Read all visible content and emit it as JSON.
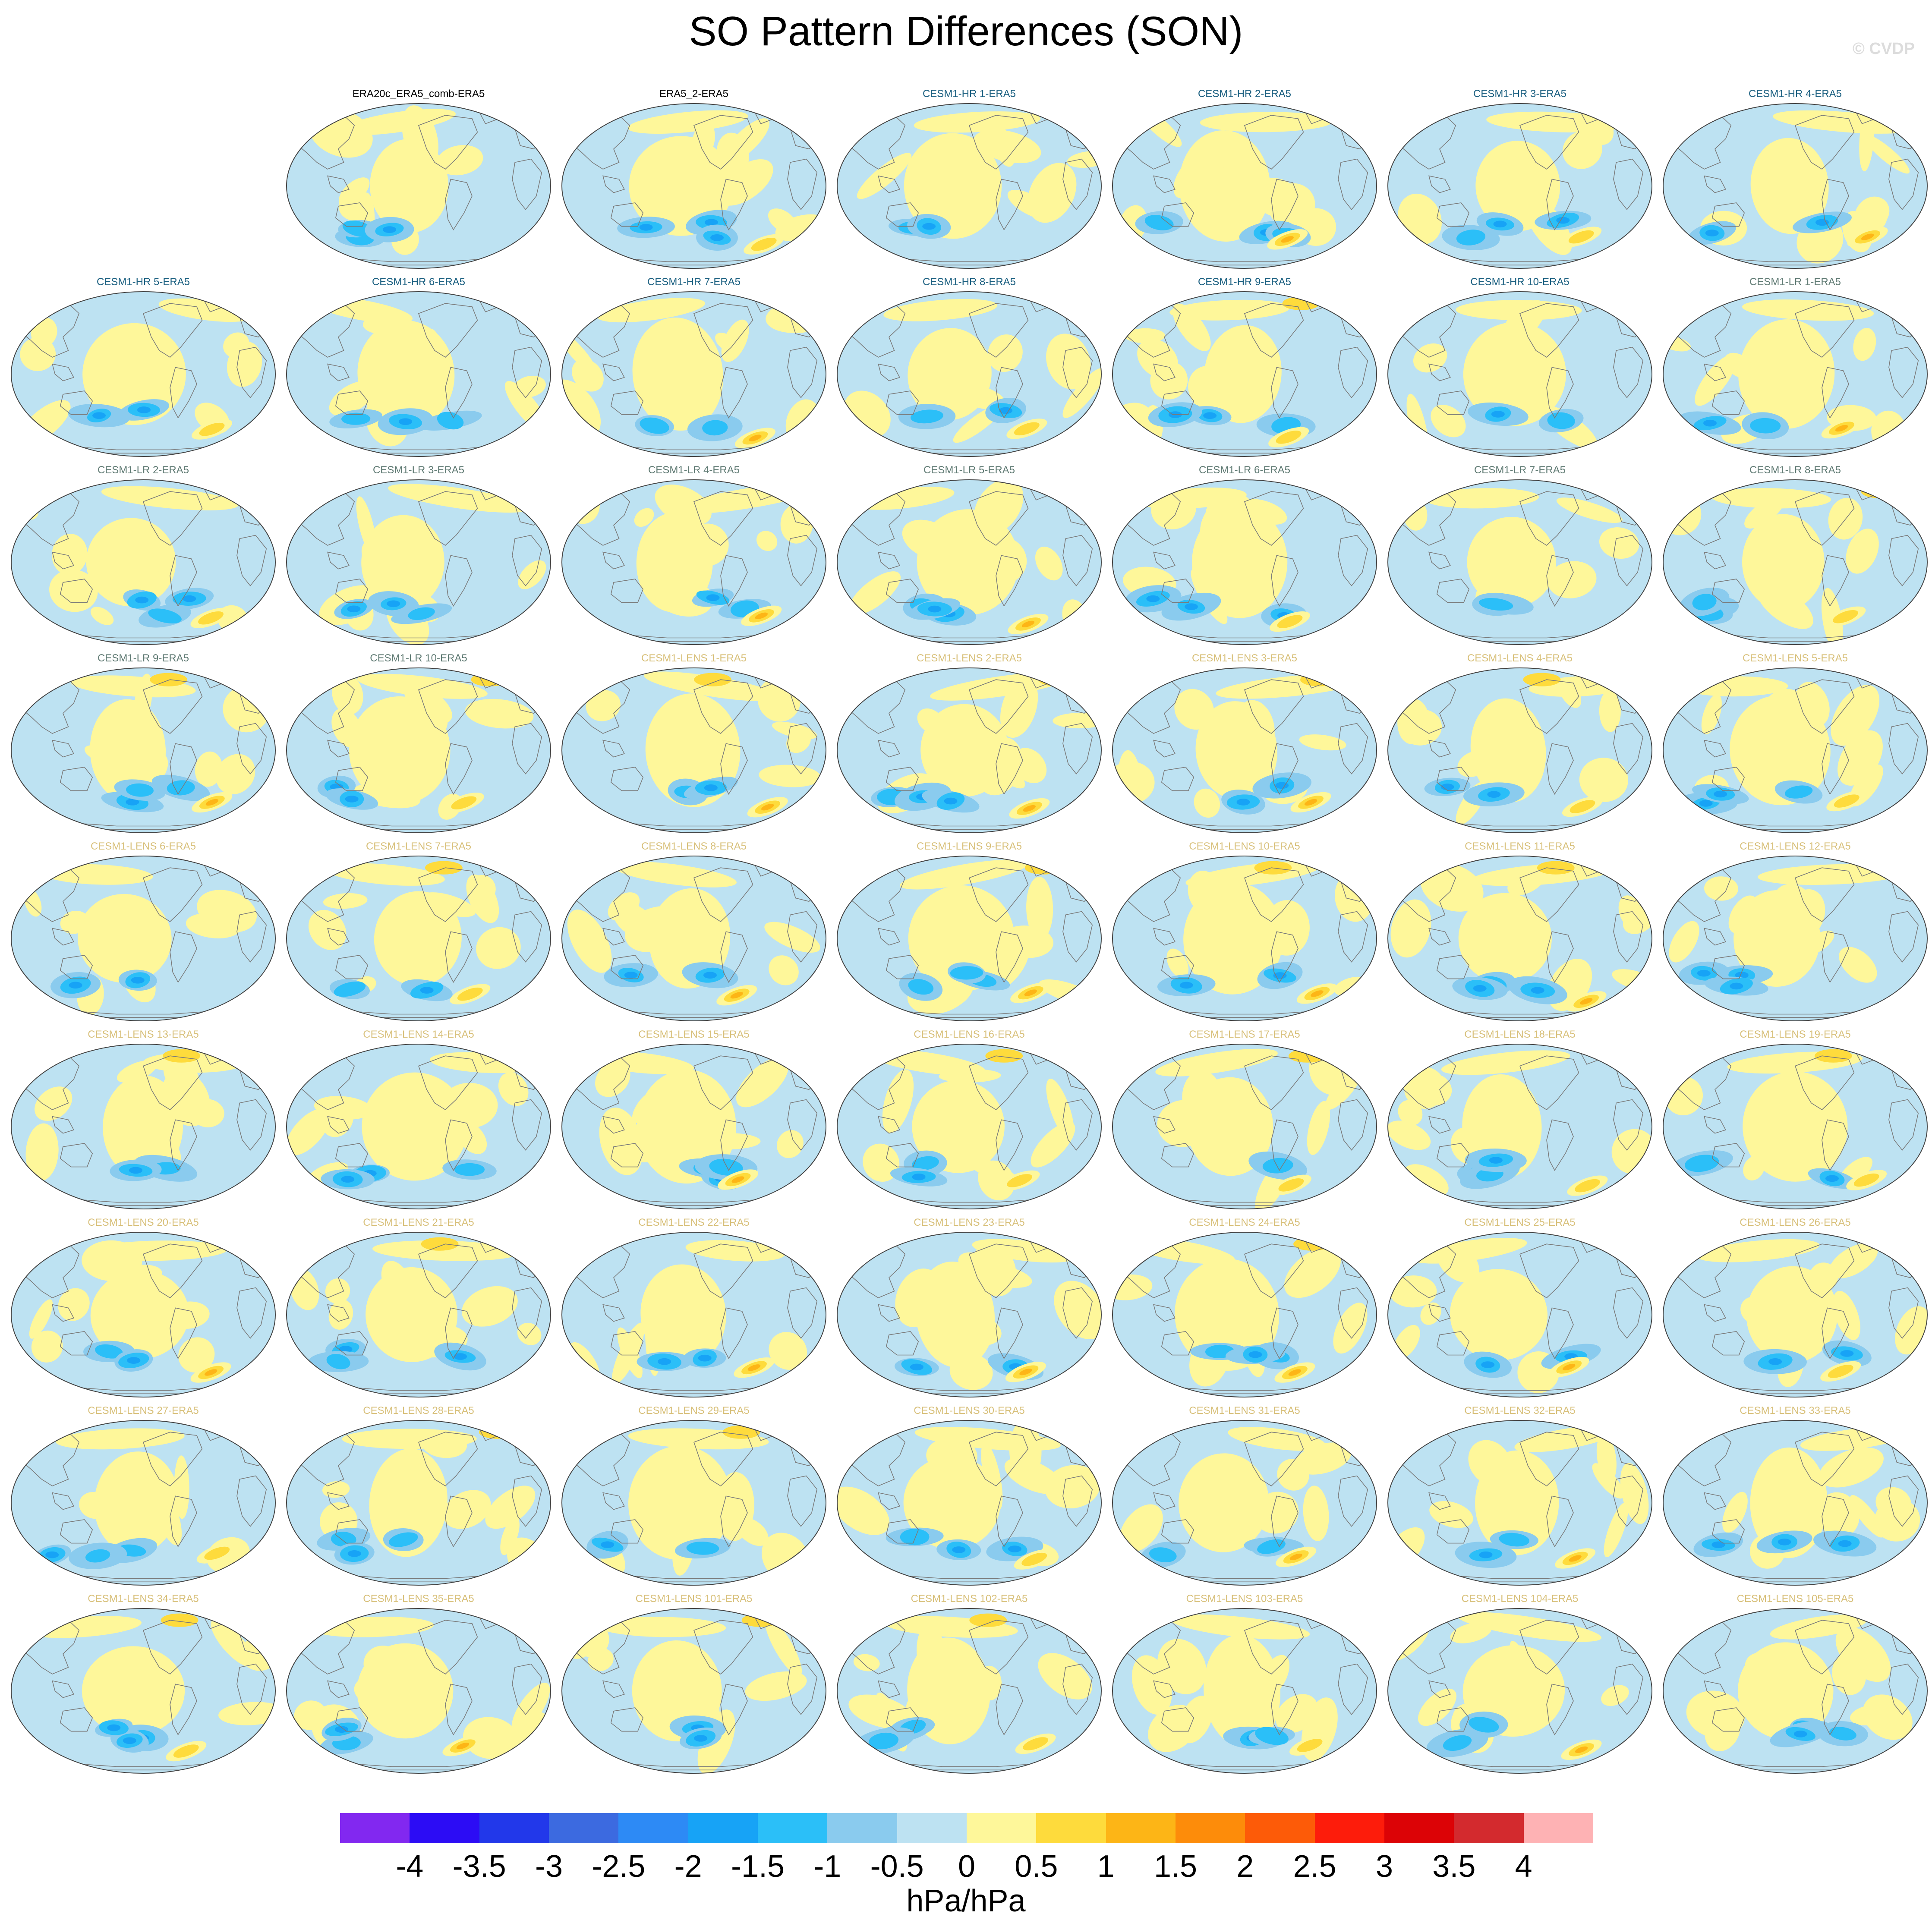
{
  "title": "SO Pattern Differences (SON)",
  "watermark": "© CVDP",
  "units": "hPa/hPa",
  "colorbar": {
    "ticks": [
      "-4",
      "-3.5",
      "-3",
      "-2.5",
      "-2",
      "-1.5",
      "-1",
      "-0.5",
      "0",
      "0.5",
      "1",
      "1.5",
      "2",
      "2.5",
      "3",
      "3.5",
      "4"
    ],
    "colors": [
      "#8228f0",
      "#2c0cf5",
      "#2238ea",
      "#3c6ae0",
      "#2d8af5",
      "#17a3f6",
      "#2bbff8",
      "#8acbee",
      "#bde2f2",
      "#fef79a",
      "#fedb3c",
      "#fdb516",
      "#fd8c0a",
      "#fd5b08",
      "#fd1c0b",
      "#dc0306",
      "#d32a2e",
      "#feb2b4"
    ]
  },
  "label_colors": {
    "obs": "#000000",
    "CESM1-HR": "#1a5f80",
    "CESM1-LR": "#5f7a73",
    "CESM1-LENS": "#d8c07a"
  },
  "panels": [
    {
      "label": "ERA20c_ERA5_comb-ERA5",
      "group": "obs"
    },
    {
      "label": "ERA5_2-ERA5",
      "group": "obs"
    },
    {
      "label": "CESM1-HR 1-ERA5",
      "group": "CESM1-HR"
    },
    {
      "label": "CESM1-HR 2-ERA5",
      "group": "CESM1-HR"
    },
    {
      "label": "CESM1-HR 3-ERA5",
      "group": "CESM1-HR"
    },
    {
      "label": "CESM1-HR 4-ERA5",
      "group": "CESM1-HR"
    },
    {
      "label": "CESM1-HR 5-ERA5",
      "group": "CESM1-HR"
    },
    {
      "label": "CESM1-HR 6-ERA5",
      "group": "CESM1-HR"
    },
    {
      "label": "CESM1-HR 7-ERA5",
      "group": "CESM1-HR"
    },
    {
      "label": "CESM1-HR 8-ERA5",
      "group": "CESM1-HR"
    },
    {
      "label": "CESM1-HR 9-ERA5",
      "group": "CESM1-HR"
    },
    {
      "label": "CESM1-HR 10-ERA5",
      "group": "CESM1-HR"
    },
    {
      "label": "CESM1-LR 1-ERA5",
      "group": "CESM1-LR"
    },
    {
      "label": "CESM1-LR 2-ERA5",
      "group": "CESM1-LR"
    },
    {
      "label": "CESM1-LR 3-ERA5",
      "group": "CESM1-LR"
    },
    {
      "label": "CESM1-LR 4-ERA5",
      "group": "CESM1-LR"
    },
    {
      "label": "CESM1-LR 5-ERA5",
      "group": "CESM1-LR"
    },
    {
      "label": "CESM1-LR 6-ERA5",
      "group": "CESM1-LR"
    },
    {
      "label": "CESM1-LR 7-ERA5",
      "group": "CESM1-LR"
    },
    {
      "label": "CESM1-LR 8-ERA5",
      "group": "CESM1-LR"
    },
    {
      "label": "CESM1-LR 9-ERA5",
      "group": "CESM1-LR"
    },
    {
      "label": "CESM1-LR 10-ERA5",
      "group": "CESM1-LR"
    },
    {
      "label": "CESM1-LENS 1-ERA5",
      "group": "CESM1-LENS"
    },
    {
      "label": "CESM1-LENS 2-ERA5",
      "group": "CESM1-LENS"
    },
    {
      "label": "CESM1-LENS 3-ERA5",
      "group": "CESM1-LENS"
    },
    {
      "label": "CESM1-LENS 4-ERA5",
      "group": "CESM1-LENS"
    },
    {
      "label": "CESM1-LENS 5-ERA5",
      "group": "CESM1-LENS"
    },
    {
      "label": "CESM1-LENS 6-ERA5",
      "group": "CESM1-LENS"
    },
    {
      "label": "CESM1-LENS 7-ERA5",
      "group": "CESM1-LENS"
    },
    {
      "label": "CESM1-LENS 8-ERA5",
      "group": "CESM1-LENS"
    },
    {
      "label": "CESM1-LENS 9-ERA5",
      "group": "CESM1-LENS"
    },
    {
      "label": "CESM1-LENS 10-ERA5",
      "group": "CESM1-LENS"
    },
    {
      "label": "CESM1-LENS 11-ERA5",
      "group": "CESM1-LENS"
    },
    {
      "label": "CESM1-LENS 12-ERA5",
      "group": "CESM1-LENS"
    },
    {
      "label": "CESM1-LENS 13-ERA5",
      "group": "CESM1-LENS"
    },
    {
      "label": "CESM1-LENS 14-ERA5",
      "group": "CESM1-LENS"
    },
    {
      "label": "CESM1-LENS 15-ERA5",
      "group": "CESM1-LENS"
    },
    {
      "label": "CESM1-LENS 16-ERA5",
      "group": "CESM1-LENS"
    },
    {
      "label": "CESM1-LENS 17-ERA5",
      "group": "CESM1-LENS"
    },
    {
      "label": "CESM1-LENS 18-ERA5",
      "group": "CESM1-LENS"
    },
    {
      "label": "CESM1-LENS 19-ERA5",
      "group": "CESM1-LENS"
    },
    {
      "label": "CESM1-LENS 20-ERA5",
      "group": "CESM1-LENS"
    },
    {
      "label": "CESM1-LENS 21-ERA5",
      "group": "CESM1-LENS"
    },
    {
      "label": "CESM1-LENS 22-ERA5",
      "group": "CESM1-LENS"
    },
    {
      "label": "CESM1-LENS 23-ERA5",
      "group": "CESM1-LENS"
    },
    {
      "label": "CESM1-LENS 24-ERA5",
      "group": "CESM1-LENS"
    },
    {
      "label": "CESM1-LENS 25-ERA5",
      "group": "CESM1-LENS"
    },
    {
      "label": "CESM1-LENS 26-ERA5",
      "group": "CESM1-LENS"
    },
    {
      "label": "CESM1-LENS 27-ERA5",
      "group": "CESM1-LENS"
    },
    {
      "label": "CESM1-LENS 28-ERA5",
      "group": "CESM1-LENS"
    },
    {
      "label": "CESM1-LENS 29-ERA5",
      "group": "CESM1-LENS"
    },
    {
      "label": "CESM1-LENS 30-ERA5",
      "group": "CESM1-LENS"
    },
    {
      "label": "CESM1-LENS 31-ERA5",
      "group": "CESM1-LENS"
    },
    {
      "label": "CESM1-LENS 32-ERA5",
      "group": "CESM1-LENS"
    },
    {
      "label": "CESM1-LENS 33-ERA5",
      "group": "CESM1-LENS"
    },
    {
      "label": "CESM1-LENS 34-ERA5",
      "group": "CESM1-LENS"
    },
    {
      "label": "CESM1-LENS 35-ERA5",
      "group": "CESM1-LENS"
    },
    {
      "label": "CESM1-LENS 101-ERA5",
      "group": "CESM1-LENS"
    },
    {
      "label": "CESM1-LENS 102-ERA5",
      "group": "CESM1-LENS"
    },
    {
      "label": "CESM1-LENS 103-ERA5",
      "group": "CESM1-LENS"
    },
    {
      "label": "CESM1-LENS 104-ERA5",
      "group": "CESM1-LENS"
    },
    {
      "label": "CESM1-LENS 105-ERA5",
      "group": "CESM1-LENS"
    }
  ]
}
